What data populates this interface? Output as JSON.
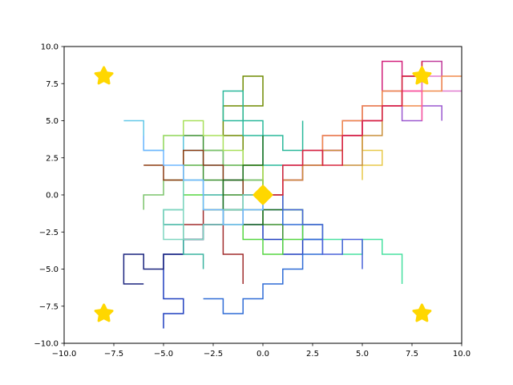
{
  "chart_data": {
    "type": "line",
    "title": "",
    "xlabel": "",
    "ylabel": "",
    "xlim": [
      -10,
      10
    ],
    "ylim": [
      -10,
      10
    ],
    "grid": false,
    "xticks": [
      -10,
      -7.5,
      -5,
      -2.5,
      0,
      2.5,
      5,
      7.5,
      10
    ],
    "xtick_labels": [
      "−10.0",
      "−7.5",
      "−5.0",
      "−2.5",
      "0.0",
      "2.5",
      "5.0",
      "7.5",
      "10.0"
    ],
    "yticks": [
      -10,
      -7.5,
      -5,
      -2.5,
      0,
      2.5,
      5,
      7.5,
      10
    ],
    "ytick_labels": [
      "−10.0",
      "−7.5",
      "−5.0",
      "−2.5",
      "0.0",
      "2.5",
      "5.0",
      "7.5",
      "10.0"
    ],
    "markers": [
      {
        "shape": "star",
        "x": -8,
        "y": 8,
        "color": "#FFD700"
      },
      {
        "shape": "star",
        "x": 8,
        "y": 8,
        "color": "#FFD700"
      },
      {
        "shape": "star",
        "x": -8,
        "y": -8,
        "color": "#FFD700"
      },
      {
        "shape": "star",
        "x": 8,
        "y": -8,
        "color": "#FFD700"
      },
      {
        "shape": "diamond",
        "x": 0,
        "y": 0,
        "color": "#FFD700"
      }
    ],
    "series": [
      {
        "color": "#1f3fbf",
        "x": [
          0,
          1,
          1,
          2,
          2,
          3,
          3,
          2,
          2,
          1,
          1,
          0,
          0,
          -1,
          -1,
          -2,
          -2,
          -3,
          -3,
          -4,
          -4,
          -5,
          -5,
          -4,
          -4,
          -5,
          -5
        ],
        "y": [
          0,
          0,
          -1,
          -1,
          -2,
          -2,
          -3,
          -3,
          -4,
          -4,
          -3,
          -3,
          -2,
          -2,
          -1,
          -1,
          -2,
          -2,
          -3,
          -3,
          -4,
          -4,
          -7,
          -7,
          -8,
          -8,
          -9
        ]
      },
      {
        "color": "#3a8f2f",
        "x": [
          0,
          0,
          -1,
          -1,
          -2,
          -2,
          -3,
          -3,
          -4,
          -4,
          -3,
          -3,
          -2,
          -2,
          -1,
          -1,
          0,
          0,
          1,
          1
        ],
        "y": [
          0,
          1,
          1,
          2,
          2,
          3,
          3,
          4,
          4,
          2,
          2,
          1,
          1,
          0,
          0,
          -1,
          -1,
          -2,
          -2,
          -3
        ]
      },
      {
        "color": "#e8c94a",
        "x": [
          0,
          1,
          1,
          2,
          2,
          3,
          3,
          4,
          4,
          5,
          5,
          6,
          6,
          5,
          5
        ],
        "y": [
          0,
          0,
          1,
          1,
          2,
          2,
          3,
          3,
          4,
          4,
          3,
          3,
          2,
          2,
          1
        ]
      },
      {
        "color": "#d21f7a",
        "x": [
          0,
          1,
          1,
          2,
          2,
          3,
          3,
          4,
          4,
          5,
          5,
          6,
          6,
          7,
          7,
          8,
          8,
          7,
          7,
          6,
          6
        ],
        "y": [
          0,
          0,
          1,
          1,
          2,
          2,
          3,
          3,
          4,
          4,
          5,
          5,
          6,
          6,
          7,
          7,
          8,
          8,
          9,
          9,
          7
        ]
      },
      {
        "color": "#48e0a0",
        "x": [
          0,
          1,
          1,
          2,
          2,
          3,
          3,
          4,
          4,
          5,
          5,
          6,
          6,
          7,
          7
        ],
        "y": [
          0,
          0,
          -1,
          -1,
          -2,
          -2,
          -3,
          -3,
          -4,
          -4,
          -3,
          -3,
          -4,
          -4,
          -6
        ]
      },
      {
        "color": "#a02b2b",
        "x": [
          0,
          -1,
          -1,
          -2,
          -2,
          -3,
          -3,
          -4,
          -4,
          -3,
          -3,
          -2,
          -2,
          -1,
          -1
        ],
        "y": [
          0,
          0,
          -1,
          -1,
          -2,
          -2,
          -3,
          -3,
          -2,
          -2,
          -1,
          -1,
          -4,
          -4,
          -6
        ]
      },
      {
        "color": "#7cc46c",
        "x": [
          0,
          0,
          -1,
          -1,
          -2,
          -2,
          -3,
          -3,
          -4,
          -4,
          -5,
          -5,
          -6,
          -6
        ],
        "y": [
          0,
          1,
          1,
          2,
          2,
          3,
          3,
          2,
          2,
          1,
          1,
          0,
          0,
          -1
        ]
      },
      {
        "color": "#e07bd0",
        "x": [
          0,
          1,
          1,
          2,
          2,
          3,
          3,
          4,
          4,
          5,
          5,
          6,
          6,
          7,
          7,
          8,
          8,
          9,
          9,
          10
        ],
        "y": [
          0,
          0,
          1,
          1,
          2,
          2,
          3,
          3,
          4,
          4,
          5,
          5,
          6,
          6,
          7,
          7,
          8,
          8,
          7,
          7
        ]
      },
      {
        "color": "#2e6bd6",
        "x": [
          0,
          0,
          1,
          1,
          2,
          2,
          3,
          3,
          2,
          2,
          1,
          1,
          0,
          0,
          -1,
          -1,
          -2,
          -2,
          -3
        ],
        "y": [
          0,
          -1,
          -1,
          -2,
          -2,
          -3,
          -3,
          -4,
          -4,
          -5,
          -5,
          -6,
          -6,
          -7,
          -7,
          -8,
          -8,
          -7,
          -7
        ]
      },
      {
        "color": "#6f8a00",
        "x": [
          0,
          0,
          -1,
          -1,
          -2,
          -2,
          -1,
          -1,
          0,
          0,
          -1,
          -1
        ],
        "y": [
          0,
          2,
          2,
          4,
          4,
          6,
          6,
          8,
          8,
          6,
          6,
          5
        ]
      },
      {
        "color": "#c03a9a",
        "x": [
          0,
          1,
          1,
          2,
          2,
          3,
          3,
          4,
          4,
          5,
          5,
          6,
          6,
          7,
          7,
          8,
          8,
          9,
          9
        ],
        "y": [
          0,
          0,
          2,
          2,
          3,
          3,
          4,
          4,
          5,
          5,
          6,
          6,
          7,
          7,
          8,
          8,
          9,
          9,
          7
        ]
      },
      {
        "color": "#63c8e8",
        "x": [
          0,
          -1,
          -1,
          -2,
          -2,
          -3,
          -3,
          -4,
          -4,
          -5,
          -5,
          -6,
          -6,
          -7
        ],
        "y": [
          0,
          0,
          1,
          1,
          2,
          2,
          3,
          3,
          4,
          4,
          3,
          3,
          5,
          5
        ]
      },
      {
        "color": "#f08a4b",
        "x": [
          0,
          1,
          1,
          2,
          2,
          3,
          3,
          4,
          4,
          5,
          5,
          6,
          6,
          7,
          7,
          8,
          8,
          9,
          9,
          10
        ],
        "y": [
          0,
          0,
          1,
          1,
          2,
          2,
          4,
          4,
          5,
          5,
          6,
          6,
          7,
          7,
          6,
          6,
          7,
          7,
          8,
          8
        ]
      },
      {
        "color": "#1a237e",
        "x": [
          0,
          -1,
          -1,
          -2,
          -2,
          -3,
          -3,
          -4,
          -4,
          -5,
          -5,
          -6,
          -6,
          -7,
          -7,
          -6
        ],
        "y": [
          0,
          0,
          -1,
          -1,
          -2,
          -2,
          -3,
          -3,
          -4,
          -4,
          -5,
          -5,
          -4,
          -4,
          -6,
          -6
        ]
      },
      {
        "color": "#29b89a",
        "x": [
          0,
          1,
          1,
          0,
          0,
          -1,
          -1,
          -2,
          -2,
          -1,
          -1,
          0,
          0,
          1,
          1,
          2,
          2
        ],
        "y": [
          0,
          0,
          2,
          2,
          4,
          4,
          5,
          5,
          7,
          7,
          5,
          5,
          4,
          4,
          3,
          3,
          5
        ]
      },
      {
        "color": "#8b3a0f",
        "x": [
          0,
          -1,
          -1,
          -2,
          -2,
          -3,
          -3,
          -4,
          -4,
          -5,
          -5,
          -6
        ],
        "y": [
          0,
          0,
          1,
          1,
          2,
          2,
          3,
          3,
          1,
          1,
          2,
          2
        ]
      },
      {
        "color": "#55d640",
        "x": [
          0,
          1,
          1,
          2,
          2,
          1,
          1,
          0,
          0,
          -1,
          -1,
          -2,
          -2,
          -3,
          -3,
          -4,
          -4
        ],
        "y": [
          0,
          0,
          -1,
          -1,
          -3,
          -3,
          -4,
          -4,
          -3,
          -3,
          -2,
          -2,
          -1,
          -1,
          0,
          0,
          2
        ]
      },
      {
        "color": "#9b59d0",
        "x": [
          0,
          1,
          1,
          2,
          2,
          3,
          3,
          4,
          4,
          5,
          5,
          6,
          6,
          7,
          7,
          8,
          8,
          9,
          9
        ],
        "y": [
          0,
          0,
          1,
          1,
          2,
          2,
          3,
          3,
          4,
          4,
          5,
          5,
          6,
          6,
          5,
          5,
          6,
          6,
          5
        ]
      },
      {
        "color": "#3bb3a0",
        "x": [
          0,
          -1,
          -1,
          -2,
          -2,
          -3,
          -3,
          -4,
          -4,
          -5,
          -5,
          -4,
          -4,
          -3,
          -3
        ],
        "y": [
          0,
          0,
          -1,
          -1,
          0,
          0,
          1,
          1,
          -1,
          -1,
          -2,
          -2,
          -4,
          -4,
          -5
        ]
      },
      {
        "color": "#a8e05a",
        "x": [
          0,
          0,
          -1,
          -1,
          -2,
          -2,
          -3,
          -3,
          -4,
          -4,
          -5,
          -5
        ],
        "y": [
          0,
          2,
          2,
          3,
          3,
          4,
          4,
          5,
          5,
          4,
          4,
          3
        ]
      },
      {
        "color": "#1e6f1e",
        "x": [
          0,
          1,
          1,
          0,
          0,
          -1,
          -1,
          -2,
          -2,
          -1,
          -1,
          0,
          0
        ],
        "y": [
          0,
          0,
          -1,
          -1,
          -2,
          -2,
          -1,
          -1,
          1,
          1,
          2,
          2,
          4
        ]
      },
      {
        "color": "#ff5a9e",
        "x": [
          0,
          1,
          1,
          2,
          2,
          3,
          3,
          4,
          4,
          5,
          5,
          6,
          6,
          7,
          7,
          8,
          8
        ],
        "y": [
          0,
          0,
          1,
          1,
          2,
          2,
          3,
          3,
          4,
          4,
          5,
          5,
          6,
          6,
          7,
          7,
          5
        ]
      },
      {
        "color": "#4a63d9",
        "x": [
          0,
          1,
          1,
          2,
          2,
          3,
          3,
          4,
          4,
          5,
          5
        ],
        "y": [
          0,
          0,
          -1,
          -1,
          -2,
          -2,
          -4,
          -4,
          -3,
          -3,
          -5
        ]
      },
      {
        "color": "#c98f3a",
        "x": [
          0,
          1,
          1,
          2,
          2,
          3,
          3,
          4,
          4,
          5,
          5,
          6,
          6
        ],
        "y": [
          0,
          0,
          1,
          1,
          2,
          2,
          3,
          3,
          2,
          2,
          4,
          4,
          6
        ]
      },
      {
        "color": "#7ed6c0",
        "x": [
          0,
          -1,
          -1,
          -2,
          -2,
          -3,
          -3,
          -4,
          -4,
          -5,
          -5,
          -4,
          -4
        ],
        "y": [
          0,
          0,
          -1,
          -1,
          -2,
          -2,
          -3,
          -3,
          -1,
          -1,
          -3,
          -3,
          2
        ]
      },
      {
        "color": "#d7263d",
        "x": [
          0,
          1,
          1,
          2,
          2,
          3,
          3,
          4,
          4,
          5,
          5,
          6,
          6,
          7,
          7,
          8,
          8
        ],
        "y": [
          0,
          0,
          2,
          2,
          3,
          3,
          2,
          2,
          4,
          4,
          5,
          5,
          6,
          6,
          8,
          8,
          9
        ]
      },
      {
        "color": "#6fb7ff",
        "x": [
          0,
          0,
          -1,
          -1,
          -2,
          -2,
          -3,
          -3,
          -4,
          -4,
          -5,
          -5,
          -6,
          -6
        ],
        "y": [
          0,
          -1,
          -1,
          -2,
          -2,
          -1,
          -1,
          1,
          1,
          2,
          2,
          3,
          3,
          4
        ]
      }
    ]
  }
}
